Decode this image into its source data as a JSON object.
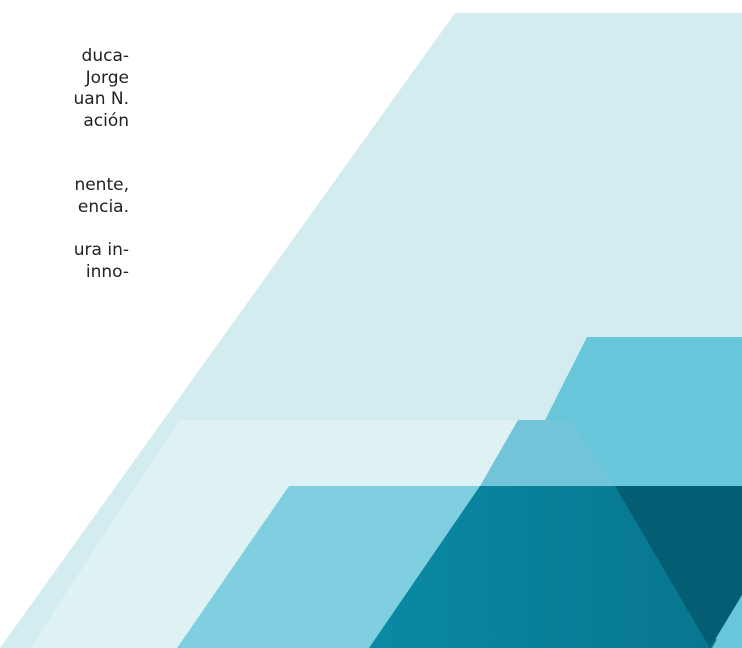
{
  "document": {
    "paragraph_1": {
      "line_1": "duca-",
      "line_2": "Jorge",
      "line_3": "uan N.",
      "line_4": "ación"
    },
    "paragraph_2": {
      "line_1": "nente,",
      "line_2": "encia."
    },
    "paragraph_3": {
      "line_1": "ura in-",
      "line_2": "inno-"
    }
  },
  "colors": {
    "pale_cyan": "#d3ecf0",
    "very_pale_cyan": "#e0f3f4",
    "light_teal": "#7ccfdf",
    "medium_teal": "#67c6da",
    "deep_teal": "#0b7f99",
    "dark_teal": "#045e73"
  }
}
